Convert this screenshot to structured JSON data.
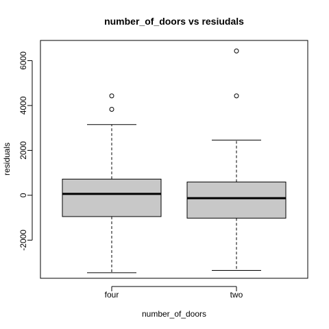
{
  "chart_data": {
    "type": "box",
    "title": "number_of_doors  vs resiudals",
    "xlabel": "number_of_doors",
    "ylabel": "residuals",
    "ylim": [
      -3700,
      6900
    ],
    "yticks": [
      -2000,
      0,
      2000,
      4000,
      6000
    ],
    "categories": [
      "four",
      "two"
    ],
    "boxes": [
      {
        "category": "four",
        "whisker_low": -3450,
        "q1": -950,
        "median": 60,
        "q3": 720,
        "whisker_high": 3150,
        "outliers": [
          3830,
          4430
        ]
      },
      {
        "category": "two",
        "whisker_low": -3350,
        "q1": -1020,
        "median": -130,
        "q3": 590,
        "whisker_high": 2460,
        "outliers": [
          4430,
          6430
        ]
      }
    ],
    "colors": {
      "box_fill": "#c8c8c8",
      "line": "#000000",
      "background": "#ffffff"
    },
    "grid": false
  }
}
